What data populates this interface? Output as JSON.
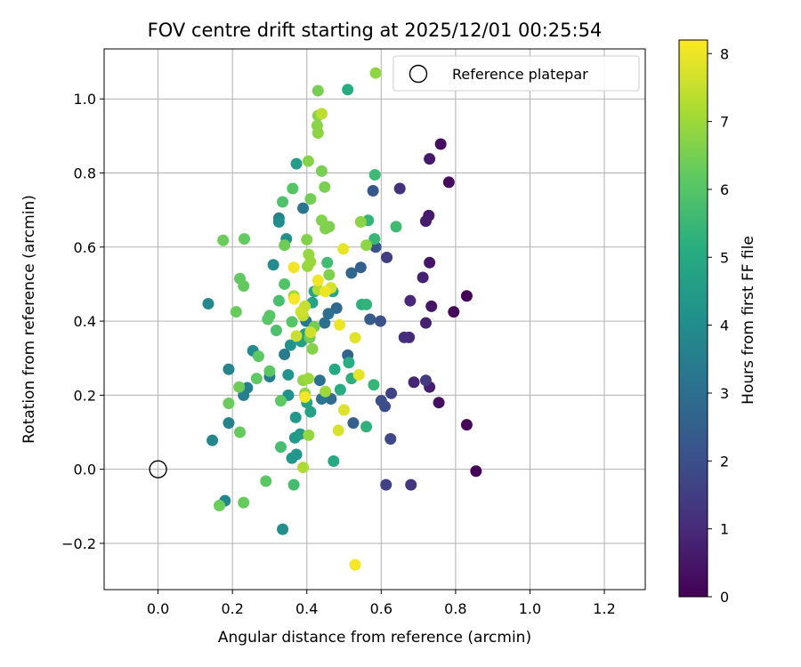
{
  "chart_data": {
    "type": "scatter",
    "title": "FOV centre drift starting at 2025/12/01 00:25:54",
    "xlabel": "Angular distance from reference (arcmin)",
    "ylabel": "Rotation from reference (arcmin)",
    "xlim": [
      -0.145,
      1.31
    ],
    "ylim": [
      -0.325,
      1.135
    ],
    "x_ticks": [
      0.0,
      0.2,
      0.4,
      0.6,
      0.8,
      1.0,
      1.2
    ],
    "x_tick_labels": [
      "0.0",
      "0.2",
      "0.4",
      "0.6",
      "0.8",
      "1.0",
      "1.2"
    ],
    "y_ticks": [
      -0.2,
      0.0,
      0.2,
      0.4,
      0.6,
      0.8,
      1.0
    ],
    "y_tick_labels": [
      "−0.2",
      "0.0",
      "0.2",
      "0.4",
      "0.6",
      "0.8",
      "1.0"
    ],
    "grid": true,
    "legend": {
      "position": "top-right",
      "label": "Reference platepar"
    },
    "reference_point": {
      "x": 0.0,
      "y": 0.0
    },
    "colorbar": {
      "label": "Hours from first FF file",
      "range": [
        0,
        8.2
      ],
      "ticks": [
        0,
        1,
        2,
        3,
        4,
        5,
        6,
        7,
        8
      ],
      "tick_labels": [
        "0",
        "1",
        "2",
        "3",
        "4",
        "5",
        "6",
        "7",
        "8"
      ],
      "colormap": "viridis"
    },
    "points": [
      {
        "x": 0.855,
        "y": -0.005,
        "h": 0.05
      },
      {
        "x": 0.83,
        "y": 0.468,
        "h": 0.1
      },
      {
        "x": 0.83,
        "y": 0.12,
        "h": 0.15
      },
      {
        "x": 0.795,
        "y": 0.425,
        "h": 0.2
      },
      {
        "x": 0.782,
        "y": 0.775,
        "h": 0.25
      },
      {
        "x": 0.76,
        "y": 0.878,
        "h": 0.3
      },
      {
        "x": 0.755,
        "y": 0.18,
        "h": 0.35
      },
      {
        "x": 0.735,
        "y": 0.44,
        "h": 0.45
      },
      {
        "x": 0.73,
        "y": 0.558,
        "h": 0.5
      },
      {
        "x": 0.73,
        "y": 0.838,
        "h": 0.55
      },
      {
        "x": 0.728,
        "y": 0.685,
        "h": 0.6
      },
      {
        "x": 0.72,
        "y": 0.67,
        "h": 0.65
      },
      {
        "x": 0.73,
        "y": 0.222,
        "h": 0.7
      },
      {
        "x": 0.72,
        "y": 0.395,
        "h": 0.75
      },
      {
        "x": 0.712,
        "y": 0.518,
        "h": 0.8
      },
      {
        "x": 0.688,
        "y": 0.235,
        "h": 0.85
      },
      {
        "x": 0.678,
        "y": 0.455,
        "h": 0.95
      },
      {
        "x": 0.675,
        "y": 0.356,
        "h": 1.0
      },
      {
        "x": 0.662,
        "y": 0.356,
        "h": 1.1
      },
      {
        "x": 0.65,
        "y": 0.758,
        "h": 1.2
      },
      {
        "x": 0.68,
        "y": -0.042,
        "h": 1.3
      },
      {
        "x": 0.72,
        "y": 0.24,
        "h": 1.4
      },
      {
        "x": 0.615,
        "y": 0.572,
        "h": 1.5
      },
      {
        "x": 0.613,
        "y": -0.042,
        "h": 1.6
      },
      {
        "x": 0.627,
        "y": 0.205,
        "h": 1.65
      },
      {
        "x": 0.625,
        "y": 0.082,
        "h": 1.8
      },
      {
        "x": 0.61,
        "y": 0.17,
        "h": 1.9
      },
      {
        "x": 0.6,
        "y": 0.185,
        "h": 2.0
      },
      {
        "x": 0.598,
        "y": 0.4,
        "h": 2.1
      },
      {
        "x": 0.585,
        "y": 0.6,
        "h": 2.15
      },
      {
        "x": 0.578,
        "y": 0.752,
        "h": 2.25
      },
      {
        "x": 0.57,
        "y": 0.405,
        "h": 2.4
      },
      {
        "x": 0.545,
        "y": 0.545,
        "h": 2.5
      },
      {
        "x": 0.525,
        "y": 0.125,
        "h": 2.55
      },
      {
        "x": 0.51,
        "y": 0.308,
        "h": 2.65
      },
      {
        "x": 0.52,
        "y": 0.53,
        "h": 2.75
      },
      {
        "x": 0.48,
        "y": 0.435,
        "h": 2.85
      },
      {
        "x": 0.465,
        "y": 0.19,
        "h": 2.9
      },
      {
        "x": 0.458,
        "y": 0.42,
        "h": 3.0
      },
      {
        "x": 0.448,
        "y": 0.395,
        "h": 3.05
      },
      {
        "x": 0.435,
        "y": 0.24,
        "h": 3.1
      },
      {
        "x": 0.44,
        "y": 0.19,
        "h": 3.2
      },
      {
        "x": 0.39,
        "y": 0.705,
        "h": 3.25
      },
      {
        "x": 0.398,
        "y": 0.4,
        "h": 3.3
      },
      {
        "x": 0.34,
        "y": 0.31,
        "h": 3.4
      },
      {
        "x": 0.3,
        "y": 0.25,
        "h": 3.45
      },
      {
        "x": 0.23,
        "y": 0.2,
        "h": 3.5
      },
      {
        "x": 0.24,
        "y": 0.22,
        "h": 3.55
      },
      {
        "x": 0.325,
        "y": 0.678,
        "h": 3.6
      },
      {
        "x": 0.19,
        "y": 0.125,
        "h": 3.65
      },
      {
        "x": 0.19,
        "y": 0.27,
        "h": 3.7
      },
      {
        "x": 0.18,
        "y": -0.085,
        "h": 3.75
      },
      {
        "x": 0.146,
        "y": 0.078,
        "h": 3.8
      },
      {
        "x": 0.135,
        "y": 0.447,
        "h": 3.85
      },
      {
        "x": 0.255,
        "y": 0.32,
        "h": 3.9
      },
      {
        "x": 0.31,
        "y": 0.552,
        "h": 3.95
      },
      {
        "x": 0.325,
        "y": 0.668,
        "h": 4.0
      },
      {
        "x": 0.335,
        "y": -0.162,
        "h": 4.05
      },
      {
        "x": 0.345,
        "y": 0.622,
        "h": 4.1
      },
      {
        "x": 0.35,
        "y": 0.2,
        "h": 4.15
      },
      {
        "x": 0.356,
        "y": 0.335,
        "h": 4.2
      },
      {
        "x": 0.35,
        "y": 0.255,
        "h": 4.25
      },
      {
        "x": 0.372,
        "y": 0.04,
        "h": 4.3
      },
      {
        "x": 0.36,
        "y": 0.03,
        "h": 4.35
      },
      {
        "x": 0.37,
        "y": 0.14,
        "h": 4.4
      },
      {
        "x": 0.368,
        "y": 0.085,
        "h": 4.45
      },
      {
        "x": 0.382,
        "y": 0.095,
        "h": 4.5
      },
      {
        "x": 0.372,
        "y": 0.825,
        "h": 4.55
      },
      {
        "x": 0.385,
        "y": 0.345,
        "h": 4.6
      },
      {
        "x": 0.395,
        "y": 0.365,
        "h": 4.65
      },
      {
        "x": 0.4,
        "y": 0.18,
        "h": 4.7
      },
      {
        "x": 0.41,
        "y": 0.155,
        "h": 4.75
      },
      {
        "x": 0.415,
        "y": 0.45,
        "h": 4.8
      },
      {
        "x": 0.42,
        "y": 0.48,
        "h": 4.85
      },
      {
        "x": 0.47,
        "y": 0.48,
        "h": 4.9
      },
      {
        "x": 0.472,
        "y": 0.022,
        "h": 4.95
      },
      {
        "x": 0.475,
        "y": 0.27,
        "h": 5.0
      },
      {
        "x": 0.49,
        "y": 0.215,
        "h": 5.05
      },
      {
        "x": 0.51,
        "y": 1.025,
        "h": 5.1
      },
      {
        "x": 0.513,
        "y": 0.288,
        "h": 5.15
      },
      {
        "x": 0.52,
        "y": 0.245,
        "h": 5.2
      },
      {
        "x": 0.548,
        "y": 0.445,
        "h": 5.25
      },
      {
        "x": 0.56,
        "y": 0.115,
        "h": 5.3
      },
      {
        "x": 0.56,
        "y": 0.445,
        "h": 5.35
      },
      {
        "x": 0.565,
        "y": 0.672,
        "h": 5.4
      },
      {
        "x": 0.58,
        "y": 0.228,
        "h": 5.45
      },
      {
        "x": 0.582,
        "y": 0.622,
        "h": 5.5
      },
      {
        "x": 0.583,
        "y": 0.795,
        "h": 5.55
      },
      {
        "x": 0.64,
        "y": 0.655,
        "h": 5.6
      },
      {
        "x": 0.455,
        "y": 0.558,
        "h": 5.65
      },
      {
        "x": 0.365,
        "y": -0.042,
        "h": 5.7
      },
      {
        "x": 0.33,
        "y": 0.06,
        "h": 5.75
      },
      {
        "x": 0.325,
        "y": 0.455,
        "h": 5.8
      },
      {
        "x": 0.318,
        "y": 0.375,
        "h": 5.85
      },
      {
        "x": 0.335,
        "y": 0.722,
        "h": 5.9
      },
      {
        "x": 0.34,
        "y": 0.5,
        "h": 5.95
      },
      {
        "x": 0.362,
        "y": 0.758,
        "h": 6.0
      },
      {
        "x": 0.36,
        "y": 0.398,
        "h": 6.02
      },
      {
        "x": 0.3,
        "y": 0.415,
        "h": 6.05
      },
      {
        "x": 0.295,
        "y": 0.405,
        "h": 6.08
      },
      {
        "x": 0.29,
        "y": -0.032,
        "h": 6.1
      },
      {
        "x": 0.3,
        "y": 0.265,
        "h": 6.12
      },
      {
        "x": 0.33,
        "y": 0.185,
        "h": 6.14
      },
      {
        "x": 0.27,
        "y": 0.305,
        "h": 6.16
      },
      {
        "x": 0.265,
        "y": 0.245,
        "h": 6.18
      },
      {
        "x": 0.22,
        "y": 0.515,
        "h": 6.2
      },
      {
        "x": 0.23,
        "y": 0.495,
        "h": 6.22
      },
      {
        "x": 0.232,
        "y": 0.622,
        "h": 6.24
      },
      {
        "x": 0.22,
        "y": 0.1,
        "h": 6.26
      },
      {
        "x": 0.23,
        "y": -0.09,
        "h": 6.28
      },
      {
        "x": 0.21,
        "y": 0.425,
        "h": 6.3
      },
      {
        "x": 0.19,
        "y": 0.178,
        "h": 6.32
      },
      {
        "x": 0.175,
        "y": 0.618,
        "h": 6.34
      },
      {
        "x": 0.165,
        "y": -0.098,
        "h": 6.36
      },
      {
        "x": 0.218,
        "y": 0.222,
        "h": 6.38
      },
      {
        "x": 0.34,
        "y": 0.605,
        "h": 6.4
      },
      {
        "x": 0.408,
        "y": 0.355,
        "h": 6.42
      },
      {
        "x": 0.41,
        "y": 0.73,
        "h": 6.45
      },
      {
        "x": 0.42,
        "y": 0.385,
        "h": 6.48
      },
      {
        "x": 0.43,
        "y": 1.022,
        "h": 6.5
      },
      {
        "x": 0.44,
        "y": 0.805,
        "h": 6.52
      },
      {
        "x": 0.448,
        "y": 0.762,
        "h": 6.55
      },
      {
        "x": 0.46,
        "y": 0.655,
        "h": 6.58
      },
      {
        "x": 0.46,
        "y": 0.525,
        "h": 6.6
      },
      {
        "x": 0.45,
        "y": 0.65,
        "h": 6.62
      },
      {
        "x": 0.44,
        "y": 0.672,
        "h": 6.64
      },
      {
        "x": 0.4,
        "y": 0.62,
        "h": 6.66
      },
      {
        "x": 0.415,
        "y": 0.325,
        "h": 6.68
      },
      {
        "x": 0.404,
        "y": 0.832,
        "h": 6.7
      },
      {
        "x": 0.43,
        "y": 0.955,
        "h": 6.72
      },
      {
        "x": 0.428,
        "y": 0.928,
        "h": 6.74
      },
      {
        "x": 0.43,
        "y": 0.908,
        "h": 6.76
      },
      {
        "x": 0.545,
        "y": 0.668,
        "h": 6.78
      },
      {
        "x": 0.56,
        "y": 0.605,
        "h": 6.8
      },
      {
        "x": 0.585,
        "y": 1.07,
        "h": 6.82
      },
      {
        "x": 0.39,
        "y": 0.24,
        "h": 6.84
      },
      {
        "x": 0.395,
        "y": 0.205,
        "h": 6.86
      },
      {
        "x": 0.405,
        "y": 0.092,
        "h": 6.88
      },
      {
        "x": 0.405,
        "y": 0.58,
        "h": 6.9
      },
      {
        "x": 0.402,
        "y": 0.548,
        "h": 6.92
      },
      {
        "x": 0.41,
        "y": 0.56,
        "h": 6.94
      },
      {
        "x": 0.404,
        "y": 0.245,
        "h": 6.96
      },
      {
        "x": 0.45,
        "y": 0.21,
        "h": 6.98
      },
      {
        "x": 0.365,
        "y": 0.468,
        "h": 7.0
      },
      {
        "x": 0.39,
        "y": 0.005,
        "h": 7.2
      },
      {
        "x": 0.43,
        "y": 0.485,
        "h": 7.3
      },
      {
        "x": 0.44,
        "y": 0.96,
        "h": 7.4
      },
      {
        "x": 0.39,
        "y": 0.415,
        "h": 7.45
      },
      {
        "x": 0.395,
        "y": 0.44,
        "h": 7.5
      },
      {
        "x": 0.372,
        "y": 0.36,
        "h": 7.55
      },
      {
        "x": 0.384,
        "y": 0.425,
        "h": 7.6
      },
      {
        "x": 0.41,
        "y": 0.37,
        "h": 7.65
      },
      {
        "x": 0.465,
        "y": 0.49,
        "h": 7.7
      },
      {
        "x": 0.485,
        "y": 0.105,
        "h": 7.75
      },
      {
        "x": 0.5,
        "y": 0.16,
        "h": 7.8
      },
      {
        "x": 0.53,
        "y": 0.355,
        "h": 7.85
      },
      {
        "x": 0.54,
        "y": 0.255,
        "h": 7.9
      },
      {
        "x": 0.498,
        "y": 0.595,
        "h": 7.95
      },
      {
        "x": 0.488,
        "y": 0.39,
        "h": 8.0
      },
      {
        "x": 0.45,
        "y": 0.48,
        "h": 8.02
      },
      {
        "x": 0.43,
        "y": 0.51,
        "h": 8.04
      },
      {
        "x": 0.365,
        "y": 0.545,
        "h": 8.06
      },
      {
        "x": 0.395,
        "y": 0.195,
        "h": 8.08
      },
      {
        "x": 0.53,
        "y": -0.258,
        "h": 8.1
      },
      {
        "x": 0.366,
        "y": 0.46,
        "h": 8.12
      }
    ]
  }
}
